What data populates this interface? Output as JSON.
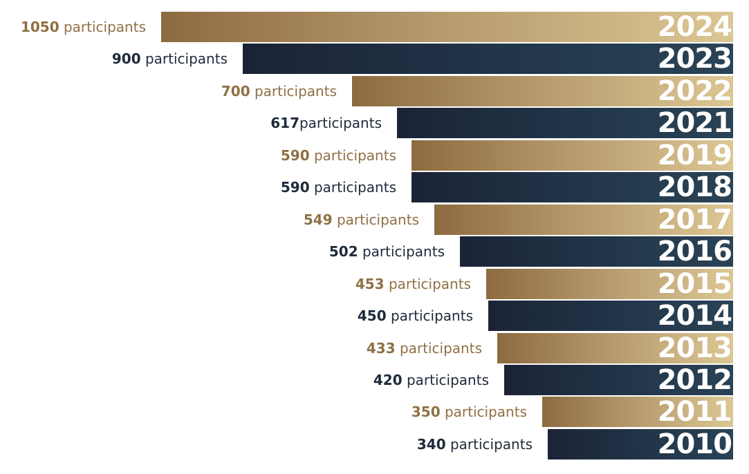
{
  "colors": {
    "gold": "#8f7044",
    "navy": "#1e2a3a"
  },
  "chart_data": {
    "type": "bar",
    "orientation": "horizontal",
    "grid": false,
    "legend": "none",
    "xlim": [
      0,
      1050
    ],
    "categories": [
      "2024",
      "2023",
      "2022",
      "2021",
      "2019",
      "2018",
      "2017",
      "2016",
      "2015",
      "2014",
      "2013",
      "2012",
      "2011",
      "2010"
    ],
    "values": [
      1050,
      900,
      700,
      617,
      590,
      590,
      549,
      502,
      453,
      450,
      433,
      420,
      350,
      340
    ],
    "bar_colors": [
      "gold",
      "navy",
      "gold",
      "navy",
      "gold",
      "navy",
      "gold",
      "navy",
      "gold",
      "navy",
      "gold",
      "navy",
      "gold",
      "navy"
    ],
    "data_labels": [
      {
        "number": "1050",
        "text": " participants"
      },
      {
        "number": "900",
        "text": " participants"
      },
      {
        "number": "700",
        "text": " participants"
      },
      {
        "number": "617",
        "text": "participants"
      },
      {
        "number": "590",
        "text": " participants"
      },
      {
        "number": "590",
        "text": " participants"
      },
      {
        "number": "549",
        "text": " participants"
      },
      {
        "number": "502",
        "text": " participants"
      },
      {
        "number": "453",
        "text": " participants"
      },
      {
        "number": "450",
        "text": " participants"
      },
      {
        "number": "433",
        "text": " participants"
      },
      {
        "number": "420",
        "text": " participants"
      },
      {
        "number": "350",
        "text": " participants"
      },
      {
        "number": "340",
        "text": " participants"
      }
    ]
  }
}
